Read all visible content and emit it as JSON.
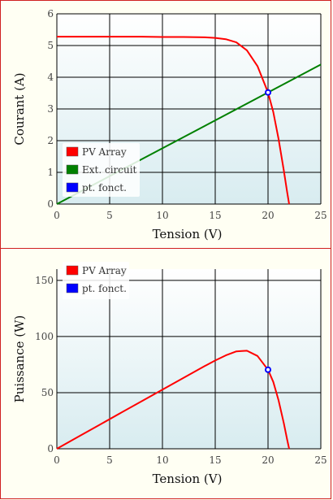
{
  "chart_data": [
    {
      "type": "line",
      "xlabel": "Tension (V)",
      "ylabel": "Courant (A)",
      "xlim": [
        0,
        25
      ],
      "ylim": [
        0,
        6
      ],
      "xticks": [
        0,
        5,
        10,
        15,
        20,
        25
      ],
      "yticks": [
        0,
        1,
        2,
        3,
        4,
        5,
        6
      ],
      "grid": true,
      "legend_position": "bottom-left",
      "series": [
        {
          "name": "PV Array",
          "color": "#ff0000",
          "x": [
            0,
            2,
            4,
            6,
            8,
            10,
            12,
            14,
            15,
            16,
            17,
            18,
            19,
            20,
            20.5,
            21,
            21.5,
            21.8,
            22
          ],
          "y": [
            5.28,
            5.28,
            5.28,
            5.28,
            5.28,
            5.27,
            5.27,
            5.26,
            5.24,
            5.2,
            5.1,
            4.85,
            4.35,
            3.52,
            2.9,
            2.05,
            1.05,
            0.4,
            0
          ]
        },
        {
          "name": "Ext. circuit",
          "color": "#008000",
          "x": [
            0,
            25
          ],
          "y": [
            0,
            4.4
          ]
        },
        {
          "name": "pt. fonct.",
          "color": "#0000ff",
          "marker": "circle",
          "x": [
            20
          ],
          "y": [
            3.52
          ]
        }
      ]
    },
    {
      "type": "line",
      "xlabel": "Tension (V)",
      "ylabel": "Puissance (W)",
      "xlim": [
        0,
        25
      ],
      "ylim": [
        0,
        160
      ],
      "xticks": [
        0,
        5,
        10,
        15,
        20,
        25
      ],
      "yticks": [
        0,
        50,
        100,
        150
      ],
      "grid": true,
      "legend_position": "top-left",
      "series": [
        {
          "name": "PV Array",
          "color": "#ff0000",
          "x": [
            0,
            2,
            4,
            6,
            8,
            10,
            12,
            14,
            15,
            16,
            17,
            17.5,
            18,
            19,
            20,
            20.5,
            21,
            21.5,
            21.8,
            22
          ],
          "y": [
            0,
            10.6,
            21.1,
            31.7,
            42.2,
            52.7,
            63.2,
            73.6,
            78.6,
            83.2,
            86.7,
            87.0,
            87.3,
            82.7,
            70.4,
            59.5,
            43.1,
            22.6,
            8.7,
            0
          ]
        },
        {
          "name": "pt. fonct.",
          "color": "#0000ff",
          "marker": "circle",
          "x": [
            20
          ],
          "y": [
            70.4
          ]
        }
      ]
    }
  ]
}
